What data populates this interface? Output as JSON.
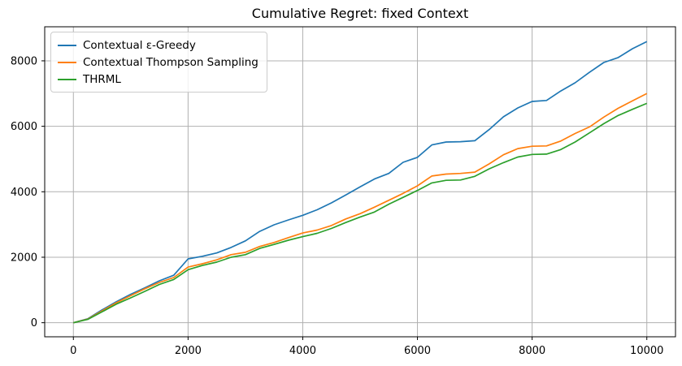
{
  "chart_data": {
    "type": "line",
    "title": "Cumulative Regret: fixed Context",
    "xlabel": "",
    "ylabel": "",
    "xlim": [
      -500,
      10500
    ],
    "ylim": [
      -430,
      9040
    ],
    "xticks": [
      0,
      2000,
      4000,
      6000,
      8000,
      10000
    ],
    "yticks": [
      0,
      2000,
      4000,
      6000,
      8000
    ],
    "grid": true,
    "grid_color": "#b0b0b0",
    "spine_color": "#000000",
    "legend_position": "upper left",
    "x": [
      0,
      250,
      500,
      750,
      1000,
      1250,
      1500,
      1750,
      2000,
      2250,
      2500,
      2750,
      3000,
      3250,
      3500,
      3750,
      4000,
      4250,
      4500,
      4750,
      5000,
      5250,
      5500,
      5750,
      6000,
      6250,
      6500,
      6750,
      7000,
      7250,
      7500,
      7750,
      8000,
      8250,
      8500,
      8750,
      9000,
      9250,
      9500,
      9750,
      10000
    ],
    "series": [
      {
        "name": "Contextual ε-Greedy",
        "color": "#1f77b4",
        "values": [
          0,
          120,
          390,
          640,
          870,
          1070,
          1280,
          1450,
          1950,
          2030,
          2130,
          2300,
          2500,
          2790,
          2990,
          3140,
          3280,
          3450,
          3660,
          3900,
          4150,
          4390,
          4560,
          4900,
          5050,
          5430,
          5520,
          5530,
          5560,
          5900,
          6290,
          6560,
          6760,
          6790,
          7080,
          7330,
          7650,
          7950,
          8100,
          8370,
          8590
        ]
      },
      {
        "name": "Contextual Thompson Sampling",
        "color": "#ff7f0e",
        "values": [
          0,
          110,
          360,
          610,
          830,
          1040,
          1230,
          1380,
          1700,
          1800,
          1920,
          2080,
          2150,
          2330,
          2450,
          2600,
          2740,
          2830,
          2970,
          3170,
          3330,
          3530,
          3740,
          3950,
          4180,
          4480,
          4540,
          4560,
          4600,
          4850,
          5130,
          5320,
          5390,
          5400,
          5550,
          5780,
          5980,
          6280,
          6550,
          6780,
          7000
        ]
      },
      {
        "name": "THRML",
        "color": "#2ca02c",
        "values": [
          0,
          100,
          330,
          570,
          760,
          960,
          1170,
          1320,
          1620,
          1750,
          1850,
          2000,
          2080,
          2270,
          2390,
          2520,
          2630,
          2730,
          2880,
          3060,
          3230,
          3380,
          3620,
          3830,
          4040,
          4270,
          4350,
          4360,
          4470,
          4700,
          4890,
          5060,
          5140,
          5150,
          5290,
          5520,
          5800,
          6080,
          6330,
          6520,
          6700
        ]
      }
    ]
  }
}
